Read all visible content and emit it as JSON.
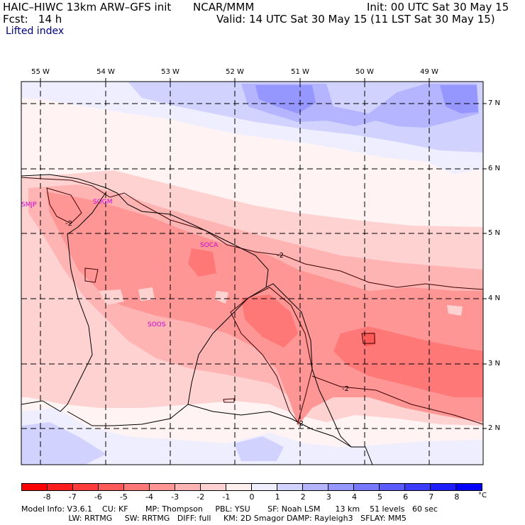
{
  "header": {
    "model_title": "HAIC–HIWC 13km ARW–GFS init",
    "org": "NCAR/MMM",
    "init": "Init: 00 UTC Sat 30 May 15",
    "fcst": "Fcst:   14 h",
    "valid": "Valid: 14 UTC Sat 30 May 15 (11 LST Sat 30 May 15)",
    "field": "Lifted index"
  },
  "map": {
    "lon_labels": [
      "55 W",
      "54 W",
      "53 W",
      "52 W",
      "51 W",
      "50 W",
      "49 W"
    ],
    "lat_labels": [
      "7 N",
      "6 N",
      "5 N",
      "4 N",
      "3 N",
      "2 N"
    ],
    "stations": [
      "SMJP",
      "SOGM",
      "SOCA",
      "SOOS"
    ],
    "contour_labels": [
      "-2",
      "-2",
      "-2",
      "-2"
    ]
  },
  "colorbar": {
    "ticks": [
      "-8",
      "-7",
      "-6",
      "-5",
      "-4",
      "-3",
      "-2",
      "-1",
      "0",
      "1",
      "2",
      "3",
      "4",
      "5",
      "6",
      "7",
      "8"
    ],
    "unit": "°C",
    "colors": [
      "#ff0000",
      "#ff1e1e",
      "#ff3c3c",
      "#ff5a5a",
      "#ff7878",
      "#ff9696",
      "#ffb4b4",
      "#ffd2d2",
      "#ffeeee",
      "#eeeeff",
      "#d2d2ff",
      "#b4b4ff",
      "#9696ff",
      "#7878ff",
      "#5a5aff",
      "#3c3cff",
      "#1e1eff",
      "#0000ff"
    ]
  },
  "model_info": {
    "line1": "Model Info: V3.6.1    CU: KF       MP: Thompson     PBL: YSU       SF: Noah LSM      13 km    51 levels   60 sec",
    "line2": "                   LW: RRTMG     SW: RRTMG   DIFF: full     KM: 2D Smagor DAMP: Rayleigh3   SFLAY: MM5"
  }
}
